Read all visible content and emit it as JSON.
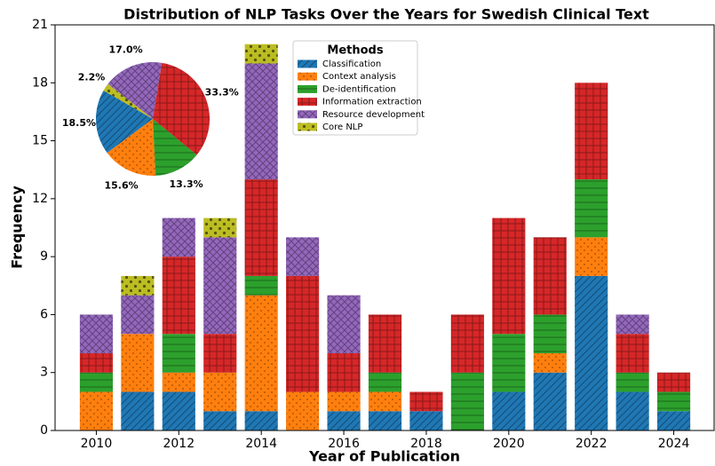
{
  "chart_data": [
    {
      "type": "bar",
      "title": "Distribution of NLP Tasks Over the Years for Swedish Clinical Text",
      "xlabel": "Year of Publication",
      "ylabel": "Frequency",
      "x": [
        2010,
        2011,
        2012,
        2013,
        2014,
        2015,
        2016,
        2017,
        2018,
        2019,
        2020,
        2021,
        2022,
        2023,
        2024
      ],
      "series": [
        {
          "name": "Classification",
          "color": "#1f77b4",
          "hatch": "//",
          "values": [
            0,
            2,
            2,
            1,
            1,
            0,
            1,
            1,
            1,
            0,
            2,
            3,
            8,
            2,
            1
          ]
        },
        {
          "name": "Context analysis",
          "color": "#ff7f0e",
          "hatch": "..",
          "values": [
            2,
            3,
            1,
            2,
            6,
            2,
            1,
            1,
            0,
            0,
            0,
            1,
            2,
            0,
            0
          ]
        },
        {
          "name": "De-identification",
          "color": "#2ca02c",
          "hatch": "-",
          "values": [
            1,
            0,
            2,
            0,
            1,
            0,
            0,
            1,
            0,
            3,
            3,
            2,
            3,
            1,
            1
          ]
        },
        {
          "name": "Information extraction",
          "color": "#d62728",
          "hatch": "+",
          "values": [
            1,
            0,
            4,
            2,
            5,
            6,
            2,
            3,
            1,
            3,
            6,
            4,
            5,
            2,
            1
          ]
        },
        {
          "name": "Resource development",
          "color": "#9467bd",
          "hatch": "x",
          "values": [
            2,
            2,
            2,
            5,
            6,
            2,
            3,
            0,
            0,
            0,
            0,
            0,
            0,
            1,
            0
          ]
        },
        {
          "name": "Core NLP",
          "color": "#bcbd22",
          "hatch": "*",
          "values": [
            0,
            1,
            0,
            1,
            1,
            0,
            0,
            0,
            0,
            0,
            0,
            0,
            0,
            0,
            0
          ]
        }
      ],
      "xlim": [
        2009,
        2025
      ],
      "ylim": [
        0,
        21
      ],
      "xticks": [
        2010,
        2012,
        2014,
        2016,
        2018,
        2020,
        2022,
        2024
      ],
      "yticks": [
        0,
        3,
        6,
        9,
        12,
        15,
        18,
        21
      ],
      "legend": {
        "title": "Methods",
        "position": "upper center"
      }
    },
    {
      "type": "pie",
      "values": [
        18.5,
        15.6,
        13.3,
        33.3,
        17.0,
        2.2
      ],
      "value_labels": [
        "18.5%",
        "15.6%",
        "13.3%",
        "33.3%",
        "17.0%",
        "2.2%"
      ],
      "colors": [
        "#1f77b4",
        "#ff7f0e",
        "#2ca02c",
        "#d62728",
        "#9467bd",
        "#bcbd22"
      ],
      "hatches": [
        "//",
        "..",
        "-",
        "+",
        "x",
        "*"
      ],
      "startangle": 150
    }
  ]
}
